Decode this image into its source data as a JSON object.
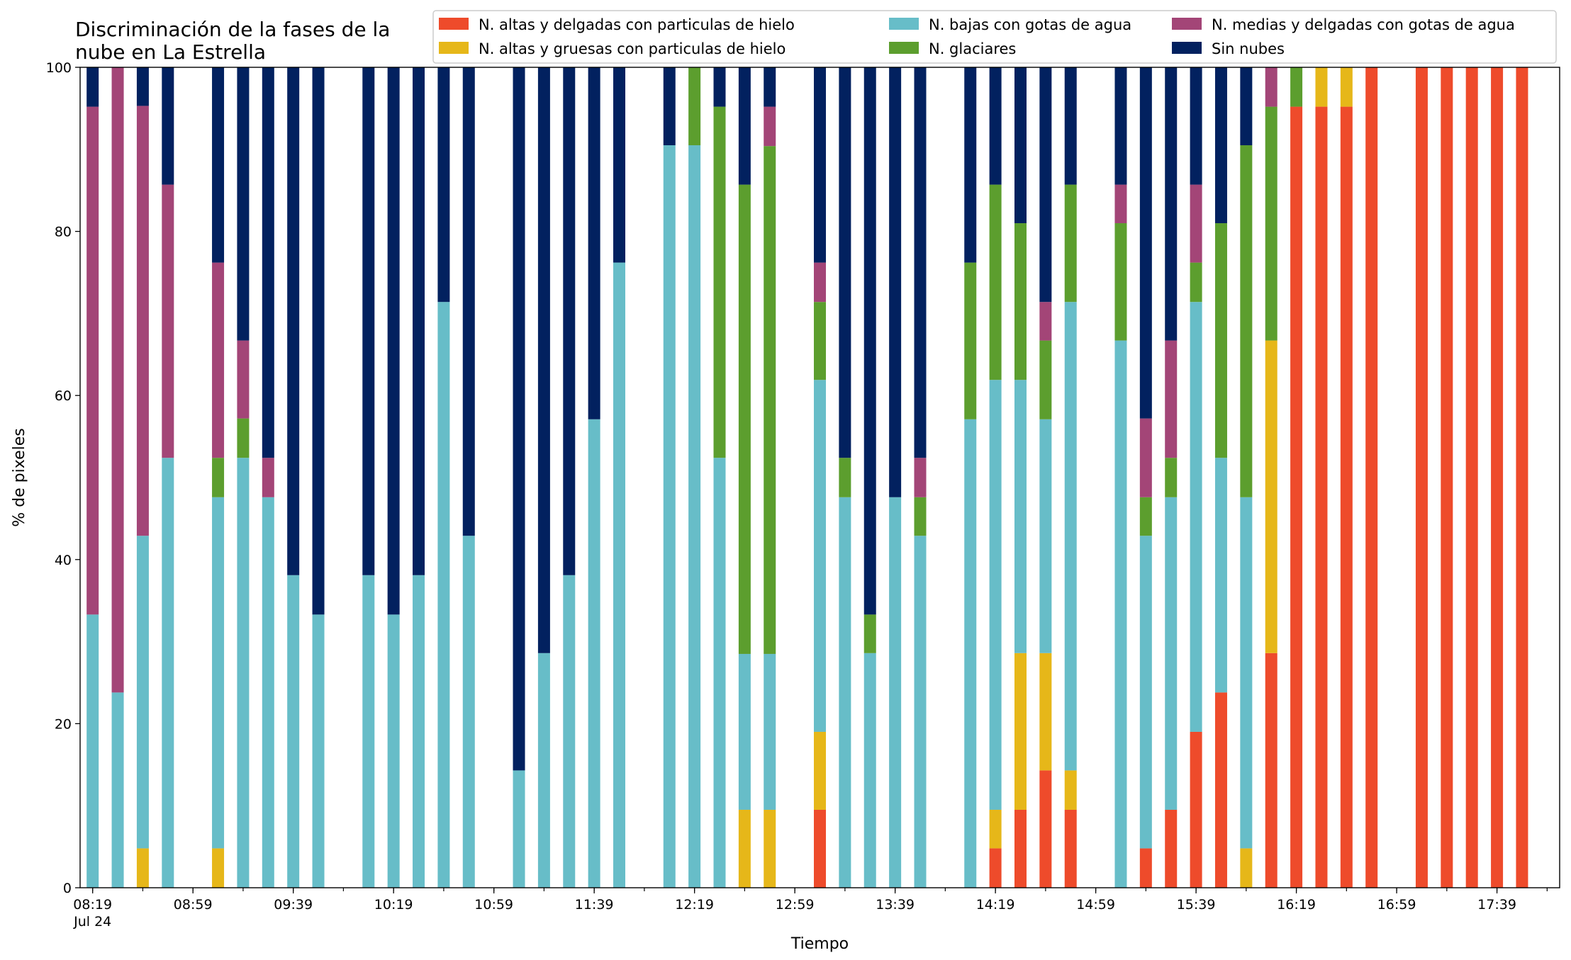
{
  "chart_data": {
    "type": "bar",
    "stacked": true,
    "title": "Discriminación de la fases de la nube en La Estrella",
    "title_lines": [
      "Discriminación de la fases de la",
      "nube en La Estrella"
    ],
    "xlabel": "Tiempo",
    "ylabel": "% de pixeles",
    "ylim": [
      0,
      100
    ],
    "yticks": [
      "0",
      "20",
      "40",
      "60",
      "80",
      "100"
    ],
    "x_tick_labels": [
      "08:19",
      "08:59",
      "09:39",
      "10:19",
      "10:59",
      "11:39",
      "12:19",
      "12:59",
      "13:39",
      "14:19",
      "14:59",
      "15:39",
      "16:19",
      "16:59",
      "17:39"
    ],
    "x_date_label": "Jul 24",
    "x_range": [
      "08:19",
      "17:59"
    ],
    "bar_interval_minutes": 10,
    "grid": false,
    "legend_position": "top-right",
    "legend_ncol": 3,
    "legend": [
      "N. altas y delgadas con particulas de hielo",
      "N. altas y gruesas con particulas de hielo",
      "N. bajas con gotas de agua",
      "N. glaciares",
      "N. medias y delgadas con gotas de agua",
      "Sin nubes"
    ],
    "series_keys": [
      "thin_ice",
      "thick_ice",
      "low_water",
      "glaciated",
      "mid_water",
      "clear"
    ],
    "colors": {
      "thin_ice": "#ee4b2b",
      "thick_ice": "#e6b719",
      "low_water": "#67bdc8",
      "glaciated": "#5c9e2e",
      "mid_water": "#a34577",
      "clear": "#02215f"
    },
    "bars": [
      {
        "x": "08:19",
        "thin_ice": 0,
        "thick_ice": 0,
        "low_water": 33.3,
        "glaciated": 0,
        "mid_water": 61.9,
        "clear": 4.8
      },
      {
        "x": "08:29",
        "thin_ice": 0,
        "thick_ice": 0,
        "low_water": 23.8,
        "glaciated": 0,
        "mid_water": 76.2,
        "clear": 0
      },
      {
        "x": "08:39",
        "thin_ice": 0,
        "thick_ice": 4.8,
        "low_water": 38.1,
        "glaciated": 0,
        "mid_water": 52.4,
        "clear": 4.7
      },
      {
        "x": "08:49",
        "thin_ice": 0,
        "thick_ice": 0,
        "low_water": 52.4,
        "glaciated": 0,
        "mid_water": 33.3,
        "clear": 14.3
      },
      {
        "x": "09:09",
        "thin_ice": 0,
        "thick_ice": 4.8,
        "low_water": 42.8,
        "glaciated": 4.8,
        "mid_water": 23.8,
        "clear": 23.8
      },
      {
        "x": "09:19",
        "thin_ice": 0,
        "thick_ice": 0,
        "low_water": 52.4,
        "glaciated": 4.8,
        "mid_water": 9.5,
        "clear": 33.3
      },
      {
        "x": "09:29",
        "thin_ice": 0,
        "thick_ice": 0,
        "low_water": 47.6,
        "glaciated": 0,
        "mid_water": 4.8,
        "clear": 47.6
      },
      {
        "x": "09:39",
        "thin_ice": 0,
        "thick_ice": 0,
        "low_water": 38.1,
        "glaciated": 0,
        "mid_water": 0,
        "clear": 61.9
      },
      {
        "x": "09:49",
        "thin_ice": 0,
        "thick_ice": 0,
        "low_water": 33.3,
        "glaciated": 0,
        "mid_water": 0,
        "clear": 66.7
      },
      {
        "x": "10:09",
        "thin_ice": 0,
        "thick_ice": 0,
        "low_water": 38.1,
        "glaciated": 0,
        "mid_water": 0,
        "clear": 61.9
      },
      {
        "x": "10:19",
        "thin_ice": 0,
        "thick_ice": 0,
        "low_water": 33.3,
        "glaciated": 0,
        "mid_water": 0,
        "clear": 66.7
      },
      {
        "x": "10:29",
        "thin_ice": 0,
        "thick_ice": 0,
        "low_water": 38.1,
        "glaciated": 0,
        "mid_water": 0,
        "clear": 61.9
      },
      {
        "x": "10:39",
        "thin_ice": 0,
        "thick_ice": 0,
        "low_water": 71.4,
        "glaciated": 0,
        "mid_water": 0,
        "clear": 28.6
      },
      {
        "x": "10:49",
        "thin_ice": 0,
        "thick_ice": 0,
        "low_water": 42.9,
        "glaciated": 0,
        "mid_water": 0,
        "clear": 57.1
      },
      {
        "x": "11:09",
        "thin_ice": 0,
        "thick_ice": 0,
        "low_water": 14.3,
        "glaciated": 0,
        "mid_water": 0,
        "clear": 85.7
      },
      {
        "x": "11:19",
        "thin_ice": 0,
        "thick_ice": 0,
        "low_water": 28.6,
        "glaciated": 0,
        "mid_water": 0,
        "clear": 71.4
      },
      {
        "x": "11:29",
        "thin_ice": 0,
        "thick_ice": 0,
        "low_water": 38.1,
        "glaciated": 0,
        "mid_water": 0,
        "clear": 61.9
      },
      {
        "x": "11:39",
        "thin_ice": 0,
        "thick_ice": 0,
        "low_water": 57.1,
        "glaciated": 0,
        "mid_water": 0,
        "clear": 42.9
      },
      {
        "x": "11:49",
        "thin_ice": 0,
        "thick_ice": 0,
        "low_water": 76.2,
        "glaciated": 0,
        "mid_water": 0,
        "clear": 23.8
      },
      {
        "x": "12:09",
        "thin_ice": 0,
        "thick_ice": 0,
        "low_water": 90.5,
        "glaciated": 0,
        "mid_water": 0,
        "clear": 9.5
      },
      {
        "x": "12:19",
        "thin_ice": 0,
        "thick_ice": 0,
        "low_water": 90.5,
        "glaciated": 9.5,
        "mid_water": 0,
        "clear": 0
      },
      {
        "x": "12:29",
        "thin_ice": 0,
        "thick_ice": 0,
        "low_water": 52.4,
        "glaciated": 42.8,
        "mid_water": 0,
        "clear": 4.8
      },
      {
        "x": "12:39",
        "thin_ice": 0,
        "thick_ice": 9.5,
        "low_water": 19.0,
        "glaciated": 57.2,
        "mid_water": 0,
        "clear": 14.3
      },
      {
        "x": "12:49",
        "thin_ice": 0,
        "thick_ice": 9.5,
        "low_water": 19.0,
        "glaciated": 61.9,
        "mid_water": 4.8,
        "clear": 4.8
      },
      {
        "x": "13:09",
        "thin_ice": 9.5,
        "thick_ice": 9.5,
        "low_water": 42.9,
        "glaciated": 9.5,
        "mid_water": 4.8,
        "clear": 23.8
      },
      {
        "x": "13:19",
        "thin_ice": 0,
        "thick_ice": 0,
        "low_water": 47.6,
        "glaciated": 4.8,
        "mid_water": 0,
        "clear": 47.6
      },
      {
        "x": "13:29",
        "thin_ice": 0,
        "thick_ice": 0,
        "low_water": 28.6,
        "glaciated": 4.7,
        "mid_water": 0,
        "clear": 66.7
      },
      {
        "x": "13:39",
        "thin_ice": 0,
        "thick_ice": 0,
        "low_water": 47.6,
        "glaciated": 0,
        "mid_water": 0,
        "clear": 52.4
      },
      {
        "x": "13:49",
        "thin_ice": 0,
        "thick_ice": 0,
        "low_water": 42.9,
        "glaciated": 4.7,
        "mid_water": 4.8,
        "clear": 47.6
      },
      {
        "x": "14:09",
        "thin_ice": 0,
        "thick_ice": 0,
        "low_water": 57.1,
        "glaciated": 19.1,
        "mid_water": 0,
        "clear": 23.8
      },
      {
        "x": "14:19",
        "thin_ice": 4.8,
        "thick_ice": 4.7,
        "low_water": 52.4,
        "glaciated": 23.8,
        "mid_water": 0,
        "clear": 14.3
      },
      {
        "x": "14:29",
        "thin_ice": 9.5,
        "thick_ice": 19.1,
        "low_water": 33.3,
        "glaciated": 19.1,
        "mid_water": 0,
        "clear": 19.0
      },
      {
        "x": "14:39",
        "thin_ice": 14.3,
        "thick_ice": 14.3,
        "low_water": 28.5,
        "glaciated": 9.6,
        "mid_water": 4.7,
        "clear": 28.6
      },
      {
        "x": "14:49",
        "thin_ice": 9.5,
        "thick_ice": 4.8,
        "low_water": 57.1,
        "glaciated": 14.3,
        "mid_water": 0,
        "clear": 14.3
      },
      {
        "x": "15:09",
        "thin_ice": 0,
        "thick_ice": 0,
        "low_water": 66.7,
        "glaciated": 14.3,
        "mid_water": 4.7,
        "clear": 14.3
      },
      {
        "x": "15:19",
        "thin_ice": 4.8,
        "thick_ice": 0,
        "low_water": 38.1,
        "glaciated": 4.7,
        "mid_water": 9.6,
        "clear": 42.8
      },
      {
        "x": "15:29",
        "thin_ice": 9.5,
        "thick_ice": 0,
        "low_water": 38.1,
        "glaciated": 4.8,
        "mid_water": 14.3,
        "clear": 33.3
      },
      {
        "x": "15:39",
        "thin_ice": 19.0,
        "thick_ice": 0,
        "low_water": 52.4,
        "glaciated": 4.8,
        "mid_water": 9.5,
        "clear": 14.3
      },
      {
        "x": "15:49",
        "thin_ice": 23.8,
        "thick_ice": 0,
        "low_water": 28.6,
        "glaciated": 28.6,
        "mid_water": 0,
        "clear": 19.0
      },
      {
        "x": "15:59",
        "thin_ice": 0,
        "thick_ice": 4.8,
        "low_water": 42.8,
        "glaciated": 42.9,
        "mid_water": 0,
        "clear": 9.5
      },
      {
        "x": "16:09",
        "thin_ice": 28.6,
        "thick_ice": 38.1,
        "low_water": 0,
        "glaciated": 28.5,
        "mid_water": 4.8,
        "clear": 0
      },
      {
        "x": "16:19",
        "thin_ice": 95.2,
        "thick_ice": 0,
        "low_water": 0,
        "glaciated": 4.8,
        "mid_water": 0,
        "clear": 0
      },
      {
        "x": "16:29",
        "thin_ice": 95.2,
        "thick_ice": 4.8,
        "low_water": 0,
        "glaciated": 0,
        "mid_water": 0,
        "clear": 0
      },
      {
        "x": "16:39",
        "thin_ice": 95.2,
        "thick_ice": 4.8,
        "low_water": 0,
        "glaciated": 0,
        "mid_water": 0,
        "clear": 0
      },
      {
        "x": "16:49",
        "thin_ice": 100,
        "thick_ice": 0,
        "low_water": 0,
        "glaciated": 0,
        "mid_water": 0,
        "clear": 0
      },
      {
        "x": "17:09",
        "thin_ice": 100,
        "thick_ice": 0,
        "low_water": 0,
        "glaciated": 0,
        "mid_water": 0,
        "clear": 0
      },
      {
        "x": "17:19",
        "thin_ice": 100,
        "thick_ice": 0,
        "low_water": 0,
        "glaciated": 0,
        "mid_water": 0,
        "clear": 0
      },
      {
        "x": "17:29",
        "thin_ice": 100,
        "thick_ice": 0,
        "low_water": 0,
        "glaciated": 0,
        "mid_water": 0,
        "clear": 0
      },
      {
        "x": "17:39",
        "thin_ice": 100,
        "thick_ice": 0,
        "low_water": 0,
        "glaciated": 0,
        "mid_water": 0,
        "clear": 0
      },
      {
        "x": "17:49",
        "thin_ice": 100,
        "thick_ice": 0,
        "low_water": 0,
        "glaciated": 0,
        "mid_water": 0,
        "clear": 0
      }
    ]
  }
}
